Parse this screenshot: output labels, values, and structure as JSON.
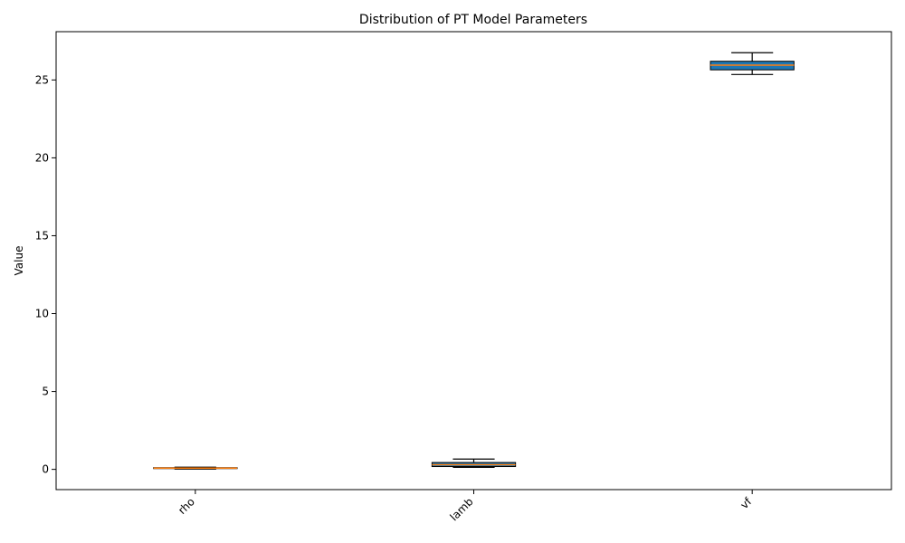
{
  "chart_data": {
    "type": "box",
    "title": "Distribution of PT Model Parameters",
    "xlabel": "",
    "ylabel": "Value",
    "ylim": [
      -1.3,
      28.1
    ],
    "yticks": [
      0,
      5,
      10,
      15,
      20,
      25
    ],
    "categories": [
      "rho",
      "lamb",
      "vf"
    ],
    "boxes": [
      {
        "category": "rho",
        "whisker_low": 0.02,
        "q1": 0.05,
        "median": 0.08,
        "q3": 0.11,
        "whisker_high": 0.14
      },
      {
        "category": "lamb",
        "whisker_low": 0.13,
        "q1": 0.18,
        "median": 0.3,
        "q3": 0.44,
        "whisker_high": 0.66
      },
      {
        "category": "vf",
        "whisker_low": 25.35,
        "q1": 25.65,
        "median": 25.95,
        "q3": 26.2,
        "whisker_high": 26.75
      }
    ],
    "grid": false,
    "legend": "none",
    "colors": {
      "box_fill": "#1f77b4",
      "median_line": "#ff7f0e",
      "outline": "#000000"
    }
  }
}
